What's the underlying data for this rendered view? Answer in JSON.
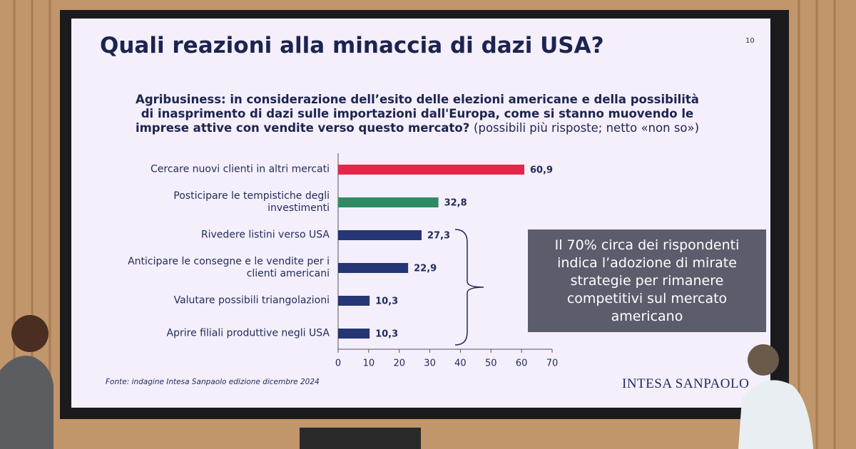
{
  "page_number": "10",
  "source": "Fonte: indagine Intesa Sanpaolo edizione dicembre 2024",
  "logo": "INTESA SANPAOLO",
  "chart_data": {
    "type": "bar",
    "orientation": "horizontal",
    "title": "Quali reazioni alla minaccia di dazi USA?",
    "subtitle": "Agribusiness: in considerazione dell’esito delle elezioni americane e della possibilità di inasprimento di dazi sulle importazioni dall'Europa, come si stanno muovendo le imprese attive con vendite verso questo mercato?",
    "subtitle_note": "(possibili più risposte; netto «non so»)",
    "categories": [
      "Cercare nuovi clienti in altri mercati",
      "Posticipare le tempistiche degli investimenti",
      "Rivedere listini verso USA",
      "Anticipare le consegne e le vendite per i clienti americani",
      "Valutare possibili triangolazioni",
      "Aprire filiali produttive negli USA"
    ],
    "values": [
      60.9,
      32.8,
      27.3,
      22.9,
      10.3,
      10.3
    ],
    "value_labels": [
      "60,9",
      "32,8",
      "27,3",
      "22,9",
      "10,3",
      "10,3"
    ],
    "colors": [
      "#e5264a",
      "#2f8a63",
      "#263574",
      "#263574",
      "#263574",
      "#263574"
    ],
    "value_label_colors": [
      "#e5264a",
      "#1f2a5c",
      "#1f2a5c",
      "#1f2a5c",
      "#1f2a5c",
      "#1f2a5c"
    ],
    "xlim": [
      0,
      70
    ],
    "xticks": [
      0,
      10,
      20,
      30,
      40,
      50,
      60,
      70
    ],
    "annotation": "Il 70% circa dei rispondenti indica l’adozione di mirate strategie per rimanere competitivi sul mercato americano"
  }
}
